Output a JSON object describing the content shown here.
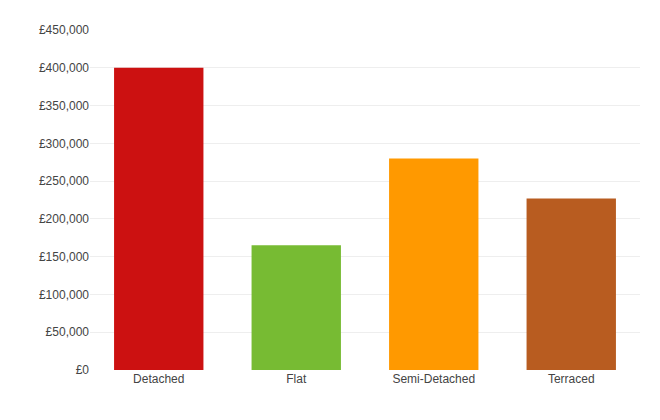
{
  "chart_data": {
    "type": "bar",
    "categories": [
      "Detached",
      "Flat",
      "Semi-Detached",
      "Terraced"
    ],
    "values": [
      400000,
      165000,
      280000,
      227000
    ],
    "colors": [
      "#cc1111",
      "#77bb33",
      "#ff9900",
      "#b85c20"
    ],
    "ylim": [
      0,
      450000
    ],
    "yticks": [
      {
        "value": 0,
        "label": "£0"
      },
      {
        "value": 50000,
        "label": "£50,000"
      },
      {
        "value": 100000,
        "label": "£100,000"
      },
      {
        "value": 150000,
        "label": "£150,000"
      },
      {
        "value": 200000,
        "label": "£200,000"
      },
      {
        "value": 250000,
        "label": "£250,000"
      },
      {
        "value": 300000,
        "label": "£300,000"
      },
      {
        "value": 350000,
        "label": "£350,000"
      },
      {
        "value": 400000,
        "label": "£400,000"
      },
      {
        "value": 450000,
        "label": "£450,000"
      }
    ],
    "grid": true
  }
}
